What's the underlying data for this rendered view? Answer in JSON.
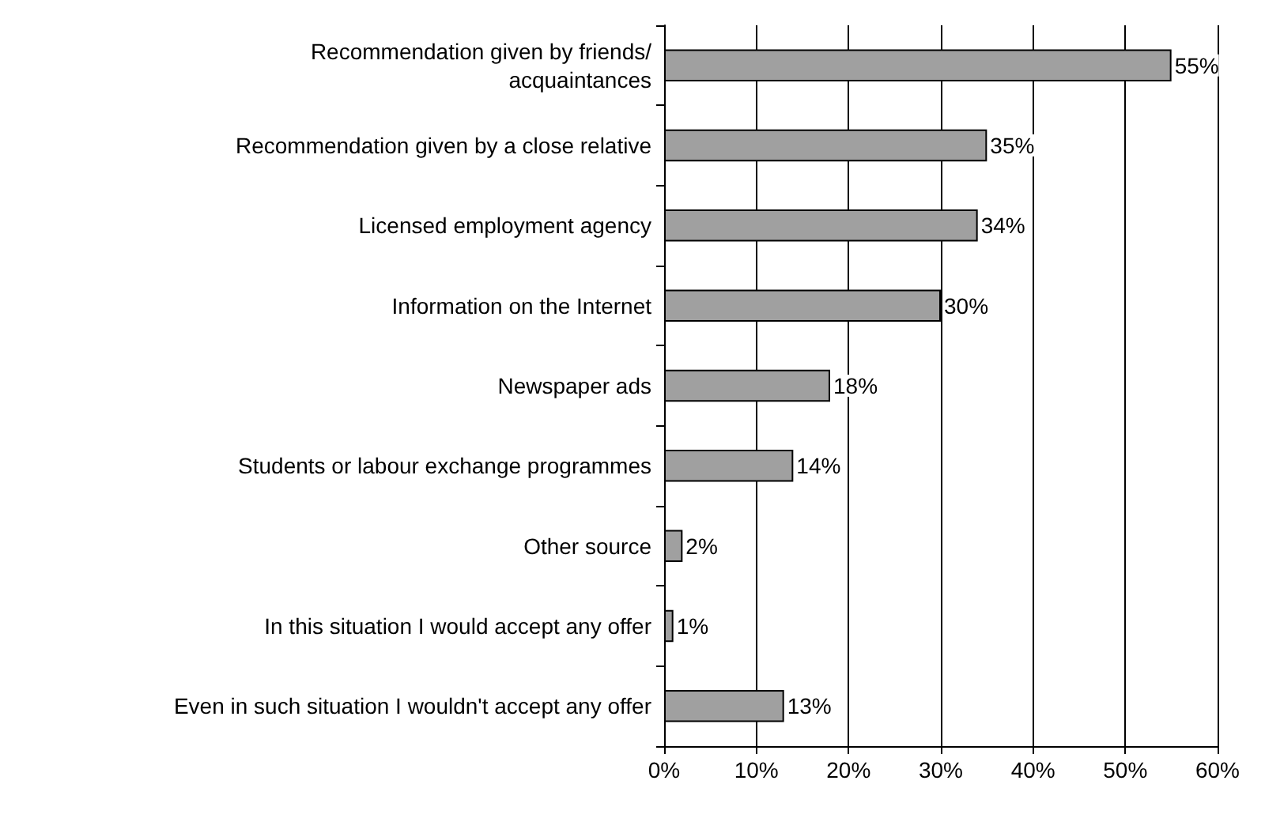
{
  "chart_data": {
    "type": "bar",
    "orientation": "horizontal",
    "categories": [
      "Recommendation given by friends/\nacquaintances",
      "Recommendation given by a close relative",
      "Licensed employment agency",
      "Information on the Internet",
      "Newspaper ads",
      "Students or labour exchange programmes",
      "Other source",
      "In this situation I would accept any offer",
      "Even in such situation I wouldn't accept any offer"
    ],
    "values": [
      55,
      35,
      34,
      30,
      18,
      14,
      2,
      1,
      13
    ],
    "value_labels": [
      "55%",
      "35%",
      "34%",
      "30%",
      "18%",
      "14%",
      "2%",
      "1%",
      "13%"
    ],
    "color": "#a0a0a0",
    "xlim": [
      0,
      60
    ],
    "xticks": [
      {
        "value": 0,
        "label": "0%"
      },
      {
        "value": 10,
        "label": "10%"
      },
      {
        "value": 20,
        "label": "20%"
      },
      {
        "value": 30,
        "label": "30%"
      },
      {
        "value": 40,
        "label": "40%"
      },
      {
        "value": 50,
        "label": "50%"
      },
      {
        "value": 60,
        "label": "60%"
      }
    ],
    "grid": "x"
  }
}
